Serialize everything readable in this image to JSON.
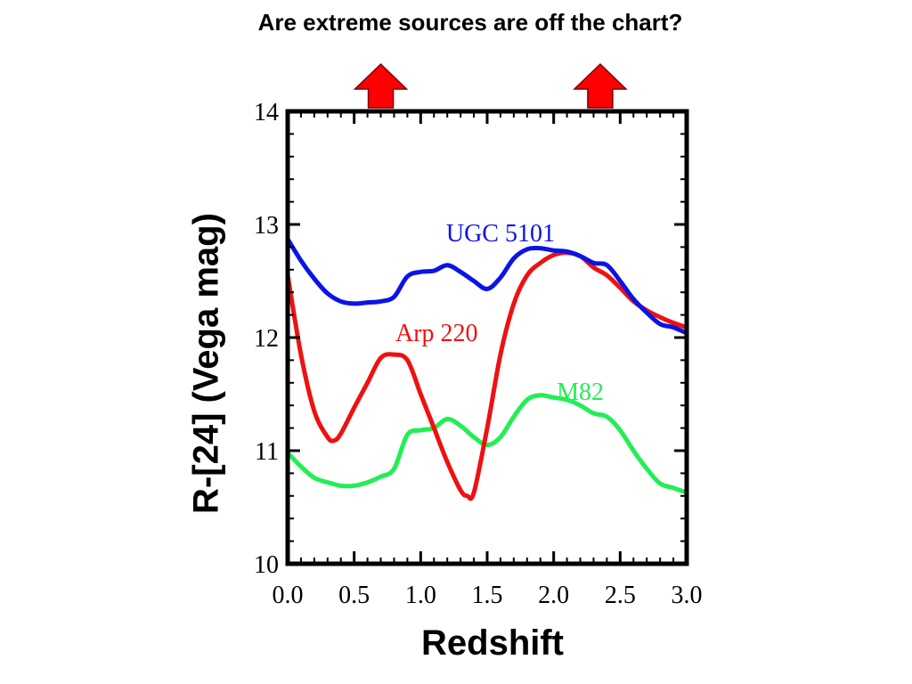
{
  "chart_data": {
    "type": "line",
    "title": "Are extreme sources are off the chart?",
    "xlabel": "Redshift",
    "ylabel": "R-[24] (Vega mag)",
    "xlim": [
      0.0,
      3.0
    ],
    "ylim": [
      10,
      14
    ],
    "xticks": [
      "0.0",
      "0.5",
      "1.0",
      "1.5",
      "2.0",
      "2.5",
      "3.0"
    ],
    "yticks": [
      "10",
      "11",
      "12",
      "13",
      "14"
    ],
    "grid": false,
    "legend": "inline labels",
    "arrows_at_x": [
      0.7,
      2.35
    ],
    "arrow_color": "#ff0000",
    "series": [
      {
        "name": "UGC 5101",
        "color": "#0a14e6",
        "x": [
          0.0,
          0.1,
          0.2,
          0.3,
          0.4,
          0.5,
          0.6,
          0.7,
          0.8,
          0.9,
          1.0,
          1.1,
          1.2,
          1.3,
          1.4,
          1.5,
          1.6,
          1.7,
          1.8,
          1.9,
          2.0,
          2.1,
          2.2,
          2.3,
          2.4,
          2.5,
          2.6,
          2.7,
          2.8,
          2.9,
          3.0
        ],
        "values": [
          12.87,
          12.68,
          12.52,
          12.39,
          12.32,
          12.3,
          12.31,
          12.32,
          12.36,
          12.54,
          12.58,
          12.59,
          12.64,
          12.58,
          12.5,
          12.43,
          12.53,
          12.7,
          12.78,
          12.79,
          12.77,
          12.76,
          12.72,
          12.66,
          12.64,
          12.5,
          12.34,
          12.22,
          12.12,
          12.09,
          12.04
        ]
      },
      {
        "name": "Arp 220",
        "color": "#ee1111",
        "x": [
          0.0,
          0.1,
          0.2,
          0.3,
          0.35,
          0.4,
          0.5,
          0.6,
          0.7,
          0.8,
          0.9,
          1.0,
          1.1,
          1.2,
          1.3,
          1.35,
          1.4,
          1.5,
          1.6,
          1.7,
          1.8,
          1.9,
          2.0,
          2.1,
          2.2,
          2.3,
          2.4,
          2.5,
          2.6,
          2.7,
          2.8,
          2.9,
          3.0
        ],
        "values": [
          12.55,
          11.85,
          11.35,
          11.12,
          11.09,
          11.15,
          11.38,
          11.6,
          11.82,
          11.85,
          11.8,
          11.5,
          11.2,
          10.9,
          10.65,
          10.6,
          10.63,
          11.2,
          11.85,
          12.3,
          12.55,
          12.66,
          12.73,
          12.75,
          12.72,
          12.62,
          12.55,
          12.44,
          12.32,
          12.24,
          12.18,
          12.13,
          12.09
        ]
      },
      {
        "name": "M82",
        "color": "#22ee55",
        "x": [
          0.0,
          0.1,
          0.2,
          0.3,
          0.4,
          0.5,
          0.6,
          0.7,
          0.8,
          0.9,
          1.0,
          1.1,
          1.2,
          1.3,
          1.4,
          1.5,
          1.6,
          1.7,
          1.8,
          1.9,
          2.0,
          2.1,
          2.2,
          2.3,
          2.4,
          2.5,
          2.6,
          2.7,
          2.8,
          2.9,
          3.0
        ],
        "values": [
          10.98,
          10.86,
          10.76,
          10.72,
          10.69,
          10.69,
          10.72,
          10.77,
          10.84,
          11.14,
          11.18,
          11.2,
          11.28,
          11.22,
          11.12,
          11.05,
          11.12,
          11.3,
          11.45,
          11.49,
          11.47,
          11.45,
          11.4,
          11.33,
          11.3,
          11.18,
          11.0,
          10.84,
          10.71,
          10.67,
          10.63
        ]
      }
    ]
  }
}
